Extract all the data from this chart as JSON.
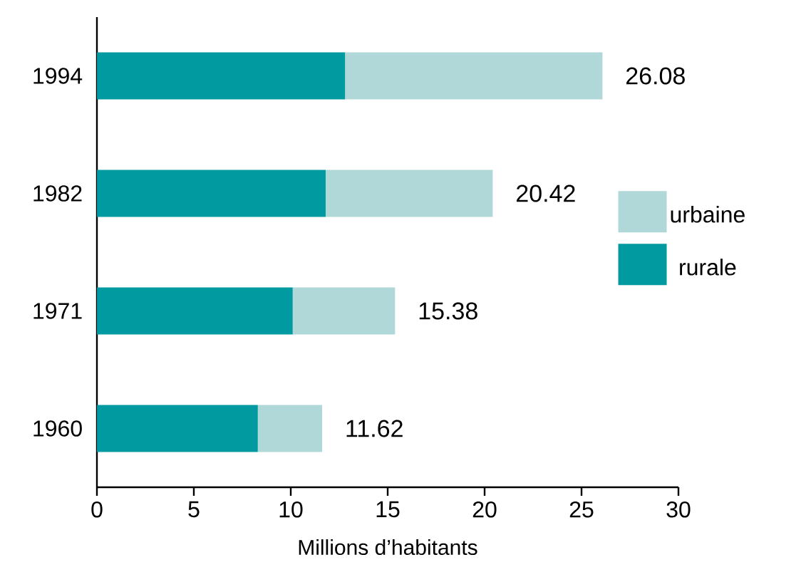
{
  "chart_data": {
    "type": "bar",
    "orientation": "horizontal",
    "stacked": true,
    "categories": [
      "1994",
      "1982",
      "1971",
      "1960"
    ],
    "series": [
      {
        "name": "rurale",
        "color": "#009aa0",
        "values": [
          12.8,
          11.8,
          10.1,
          8.3
        ]
      },
      {
        "name": "urbaine",
        "color": "#b0d8d8",
        "values": [
          13.28,
          8.62,
          5.28,
          3.32
        ]
      }
    ],
    "totals": [
      "26.08",
      "20.42",
      "15.38",
      "11.62"
    ],
    "xlabel": "Millions d’habitants",
    "xlim": [
      0,
      30
    ],
    "xticks": [
      0,
      5,
      10,
      15,
      20,
      25,
      30
    ],
    "grid": false,
    "legend": "right"
  }
}
